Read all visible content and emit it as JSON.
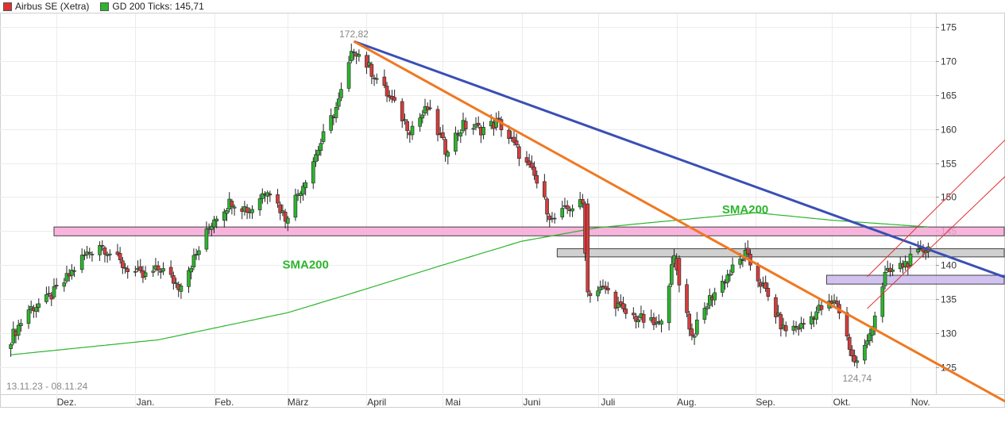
{
  "legend": [
    {
      "label": "Airbus SE (Xetra)",
      "color": "#e03030"
    },
    {
      "label": "GD 200 Ticks: 145,71",
      "color": "#2db52d"
    }
  ],
  "date_range": "13.11.23 - 08.11.24",
  "colors": {
    "up": "#2db52d",
    "down": "#d43d3d",
    "sma": "#2db52d",
    "trend_blue": "#3a4fb5",
    "trend_orange": "#f07820",
    "channel_red": "#e03030",
    "zone_pink": "#f7a8d8",
    "zone_gray": "#c8c8c8",
    "zone_lavender": "#c9b8ee"
  },
  "chart_data": {
    "type": "candlestick",
    "title": "Airbus SE (Xetra)",
    "xlabel": "",
    "ylabel": "",
    "ylim": [
      121,
      177
    ],
    "y_ticks": [
      125,
      130,
      135,
      140,
      145,
      150,
      155,
      160,
      165,
      170,
      175
    ],
    "x_ticks": [
      "Dez.",
      "Jan.",
      "Feb.",
      "März",
      "April",
      "Mai",
      "Juni",
      "Juli",
      "Aug.",
      "Sep.",
      "Okt.",
      "Nov."
    ],
    "annotations": [
      {
        "text": "172,82",
        "date": "2024-03-27",
        "value": 172.82
      },
      {
        "text": "124,74",
        "date": "2024-10-11",
        "value": 124.74
      }
    ],
    "sma_labels": [
      {
        "text": "SMA200",
        "date": "2024-03-08",
        "value": 139.5
      },
      {
        "text": "SMA200",
        "date": "2024-08-28",
        "value": 147.6
      }
    ],
    "series": [
      {
        "name": "Airbus SE (Xetra)",
        "type": "candlestick",
        "anchors": [
          [
            "2023-11-13",
            129.2
          ],
          [
            "2023-11-20",
            133.5
          ],
          [
            "2023-11-27",
            134.8
          ],
          [
            "2023-12-04",
            137.5
          ],
          [
            "2023-12-11",
            141
          ],
          [
            "2023-12-18",
            143.2
          ],
          [
            "2023-12-27",
            140
          ],
          [
            "2024-01-04",
            138.2
          ],
          [
            "2024-01-11",
            139.5
          ],
          [
            "2024-01-18",
            137
          ],
          [
            "2024-01-25",
            141.5
          ],
          [
            "2024-02-01",
            147
          ],
          [
            "2024-02-08",
            149.5
          ],
          [
            "2024-02-15",
            148
          ],
          [
            "2024-02-22",
            151.5
          ],
          [
            "2024-02-29",
            147
          ],
          [
            "2024-03-07",
            152
          ],
          [
            "2024-03-14",
            158
          ],
          [
            "2024-03-21",
            164
          ],
          [
            "2024-03-27",
            172
          ],
          [
            "2024-04-04",
            168
          ],
          [
            "2024-04-11",
            164
          ],
          [
            "2024-04-18",
            160
          ],
          [
            "2024-04-25",
            163
          ],
          [
            "2024-05-02",
            157
          ],
          [
            "2024-05-09",
            160.5
          ],
          [
            "2024-05-16",
            160
          ],
          [
            "2024-05-23",
            161
          ],
          [
            "2024-05-30",
            157
          ],
          [
            "2024-06-06",
            153
          ],
          [
            "2024-06-13",
            146.5
          ],
          [
            "2024-06-20",
            148.5
          ],
          [
            "2024-06-25",
            149
          ],
          [
            "2024-06-27",
            136
          ],
          [
            "2024-07-04",
            136.5
          ],
          [
            "2024-07-11",
            133
          ],
          [
            "2024-07-18",
            132
          ],
          [
            "2024-07-25",
            131
          ],
          [
            "2024-07-31",
            141
          ],
          [
            "2024-08-07",
            129.5
          ],
          [
            "2024-08-14",
            135
          ],
          [
            "2024-08-21",
            138.5
          ],
          [
            "2024-08-28",
            141.5
          ],
          [
            "2024-09-05",
            136
          ],
          [
            "2024-09-12",
            130.5
          ],
          [
            "2024-09-19",
            131
          ],
          [
            "2024-09-26",
            133.5
          ],
          [
            "2024-10-03",
            134.5
          ],
          [
            "2024-10-10",
            125.5
          ],
          [
            "2024-10-15",
            128.5
          ],
          [
            "2024-10-22",
            138.5
          ],
          [
            "2024-10-29",
            140
          ],
          [
            "2024-11-04",
            141.5
          ],
          [
            "2024-11-08",
            143
          ]
        ],
        "notes": "values are approximate closing prices read off the chart; daily candles between anchors are interpolated"
      }
    ],
    "sma200": {
      "name": "SMA200",
      "anchors": [
        [
          "2023-11-13",
          126.8
        ],
        [
          "2024-01-10",
          129
        ],
        [
          "2024-03-01",
          133
        ],
        [
          "2024-04-01",
          136.5
        ],
        [
          "2024-05-01",
          140
        ],
        [
          "2024-06-01",
          143.5
        ],
        [
          "2024-07-01",
          145.5
        ],
        [
          "2024-08-01",
          146.6
        ],
        [
          "2024-09-01",
          147.7
        ],
        [
          "2024-10-01",
          146.6
        ],
        [
          "2024-11-08",
          145.6
        ]
      ]
    },
    "zones": [
      {
        "name": "pink",
        "from_date": "2023-11-30",
        "to_date": "2024-11-08",
        "low": 144.3,
        "high": 145.6
      },
      {
        "name": "gray",
        "from_date": "2024-06-15",
        "to_date": "2024-11-08",
        "low": 141.2,
        "high": 142.4
      },
      {
        "name": "lavender",
        "from_date": "2024-09-29",
        "to_date": "2024-11-08",
        "low": 137.2,
        "high": 138.5
      }
    ],
    "trendlines": [
      {
        "name": "blue",
        "from": [
          "2024-03-27",
          172.9
        ],
        "to": [
          "2024-11-08",
          142.3
        ]
      },
      {
        "name": "orange",
        "from": [
          "2024-03-27",
          172.9
        ],
        "to": [
          "2024-11-08",
          126.2
        ]
      },
      {
        "name": "channel-upper",
        "from": [
          "2024-10-15",
          138.3
        ],
        "to": [
          "2024-11-08",
          147.2
        ]
      },
      {
        "name": "channel-lower",
        "from": [
          "2024-10-15",
          133.6
        ],
        "to": [
          "2024-11-08",
          142.2
        ]
      }
    ]
  }
}
